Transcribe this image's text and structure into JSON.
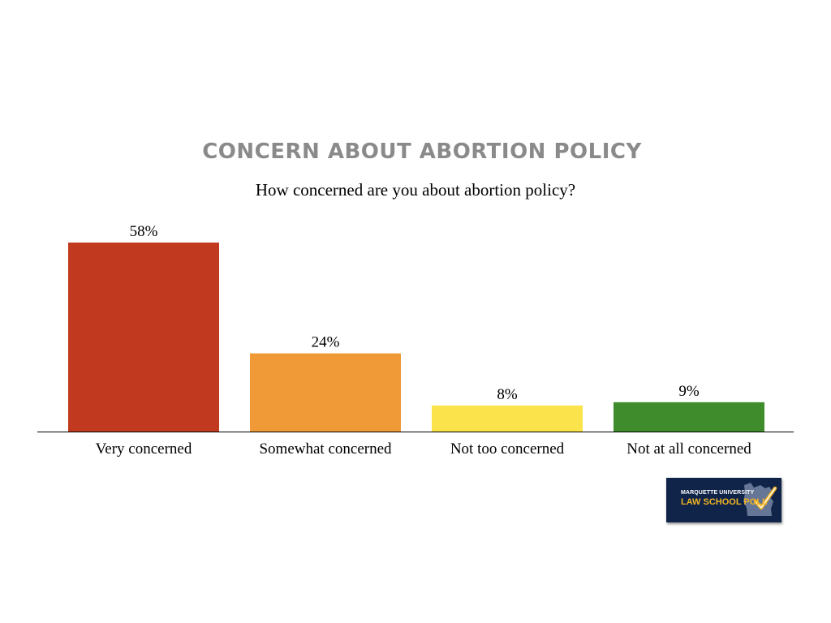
{
  "chart_data": {
    "type": "bar",
    "title": "CONCERN ABOUT ABORTION POLICY",
    "subtitle": "How concerned are you about abortion policy?",
    "categories": [
      "Very concerned",
      "Somewhat concerned",
      "Not too concerned",
      "Not at all concerned"
    ],
    "values": [
      58,
      24,
      8,
      9
    ],
    "value_labels": [
      "58%",
      "24%",
      "8%",
      "9%"
    ],
    "colors": [
      "#c1391e",
      "#ef9a37",
      "#fbe44b",
      "#3e8c2b"
    ],
    "ylim": [
      0,
      58
    ],
    "xlabel": "",
    "ylabel": "",
    "grid": false
  },
  "logo": {
    "line1": "MARQUETTE UNIVERSITY",
    "line2": "LAW SCHOOL POLL"
  }
}
